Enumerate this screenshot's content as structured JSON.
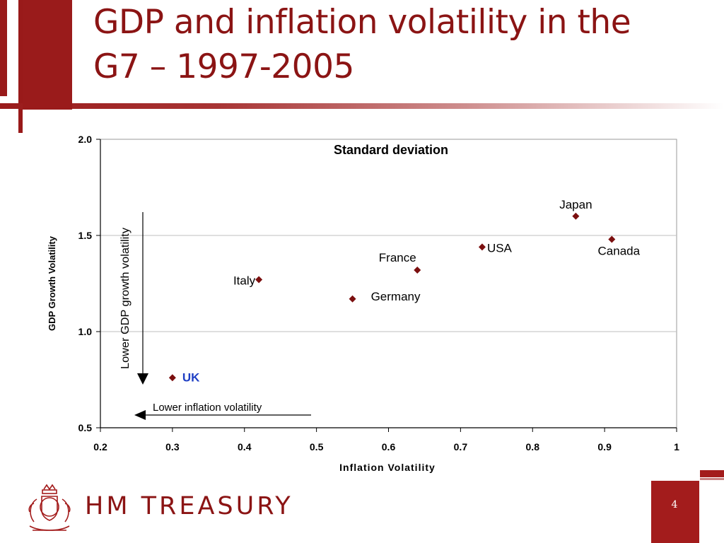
{
  "slide": {
    "title_line1": "GDP and inflation volatility in the",
    "title_line2": "G7 – 1997-2005",
    "page_number": "4"
  },
  "brand": {
    "name": "HM TREASURY",
    "crest_icon": "royal-coat-of-arms-icon"
  },
  "colors": {
    "brand_red": "#9a1b1b",
    "marker": "#7b0f0f",
    "uk_label": "#1f3fc4",
    "grid": "#bfbfbf"
  },
  "chart_data": {
    "type": "scatter",
    "title": "Standard deviation",
    "xlabel": "Inflation Volatility",
    "ylabel": "GDP Growth Volatility",
    "xlim": [
      0.2,
      1.0
    ],
    "ylim": [
      0.5,
      2.0
    ],
    "x_ticks": [
      "0.2",
      "0.3",
      "0.4",
      "0.5",
      "0.6",
      "0.7",
      "0.8",
      "0.9",
      "1"
    ],
    "y_ticks": [
      "0.5",
      "1.0",
      "1.5",
      "2.0"
    ],
    "grid": "horizontal",
    "points": [
      {
        "label": "UK",
        "x": 0.3,
        "y": 0.76,
        "highlight": true
      },
      {
        "label": "Italy",
        "x": 0.42,
        "y": 1.27
      },
      {
        "label": "Germany",
        "x": 0.55,
        "y": 1.17
      },
      {
        "label": "France",
        "x": 0.64,
        "y": 1.32
      },
      {
        "label": "USA",
        "x": 0.73,
        "y": 1.44
      },
      {
        "label": "Japan",
        "x": 0.86,
        "y": 1.6
      },
      {
        "label": "Canada",
        "x": 0.91,
        "y": 1.48
      }
    ],
    "annotations": {
      "vertical_arrow": "Lower GDP  growth volatility",
      "horizontal_arrow": "Lower inflation volatility"
    }
  }
}
